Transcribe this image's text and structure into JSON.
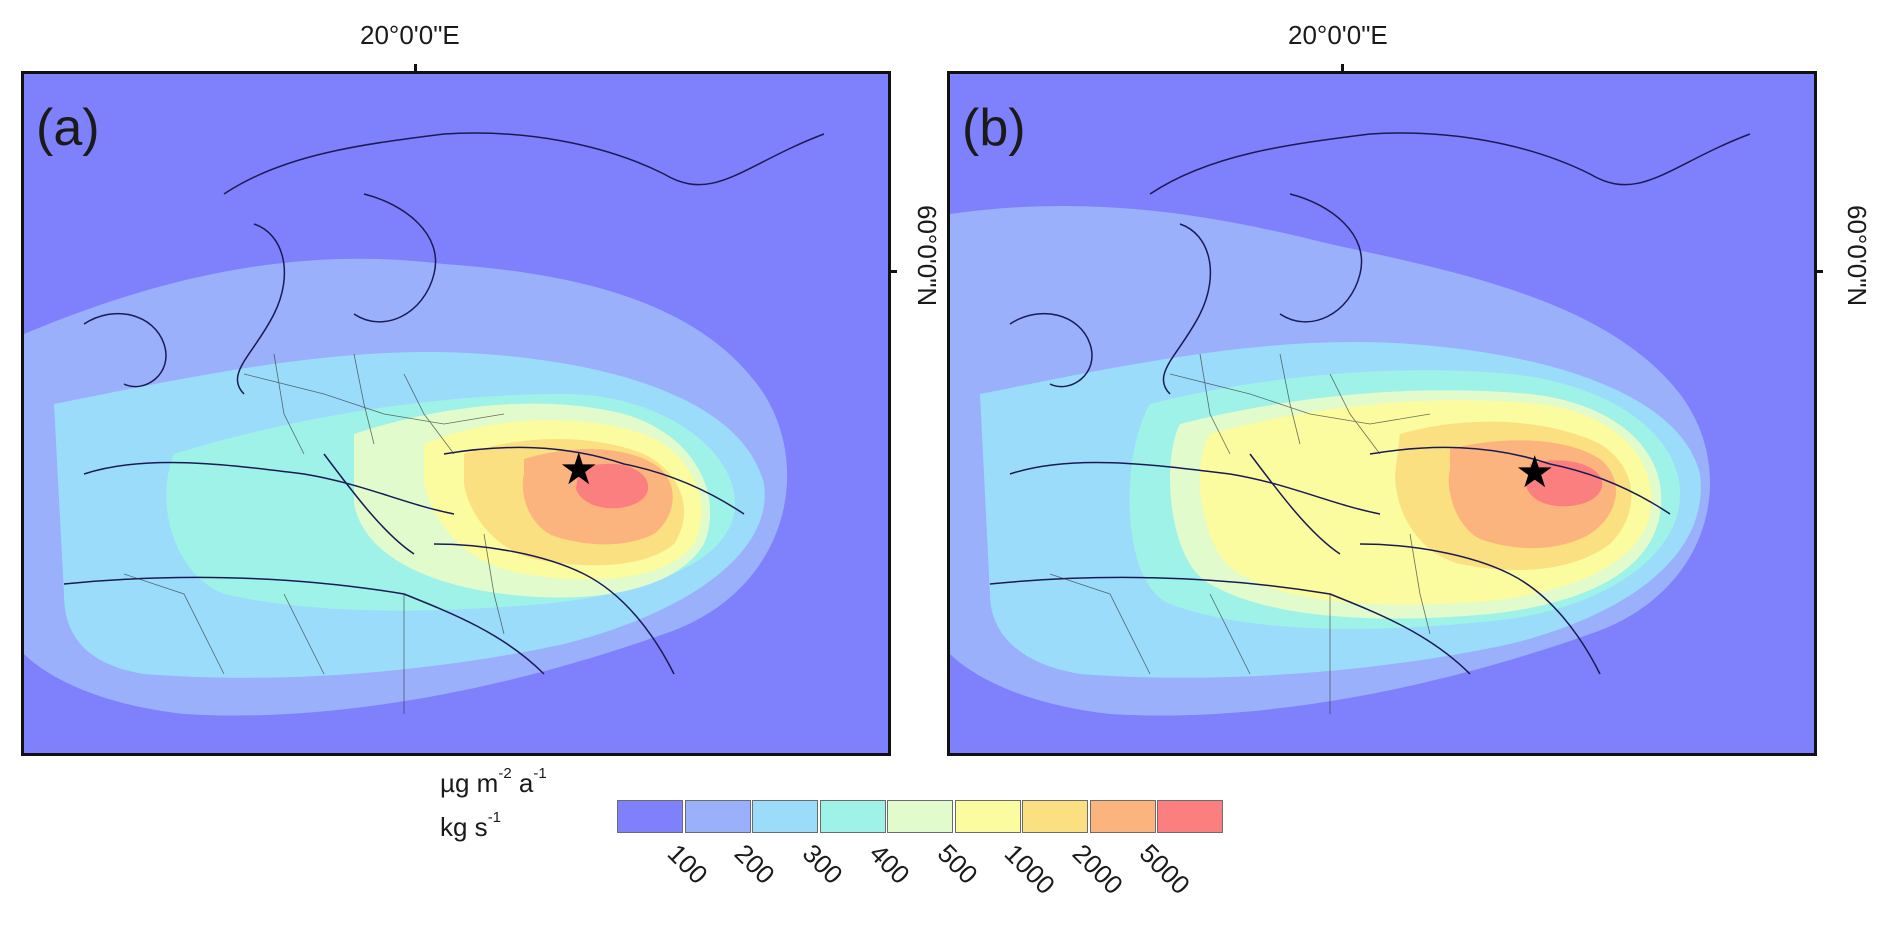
{
  "longitude_label": "20°0'0\"E",
  "latitude_label": "60°0'0\"N",
  "panels": [
    {
      "label": "(a)",
      "source": [
        33,
        32
      ]
    },
    {
      "label": "(b)",
      "source": [
        33,
        32
      ]
    }
  ],
  "units": {
    "line1": {
      "base": "µg m",
      "exp1": "-2",
      "mid": " a",
      "exp2": "-1"
    },
    "line2": {
      "base": "kg s",
      "exp": "-1"
    }
  },
  "legend": {
    "colors": [
      "#7f80fb",
      "#9ab0fb",
      "#9cdcfb",
      "#9ff2e8",
      "#e2fbcd",
      "#fbfb9f",
      "#fbe081",
      "#fbb47e",
      "#fb7f7f"
    ],
    "ticks": [
      "100",
      "200",
      "300",
      "400",
      "500",
      "1000",
      "2000",
      "5000"
    ]
  },
  "colors": {
    "land_low": "#7f80fb",
    "outline": "#1a1a55",
    "star": "#000000"
  },
  "icons": [
    "star-icon"
  ]
}
